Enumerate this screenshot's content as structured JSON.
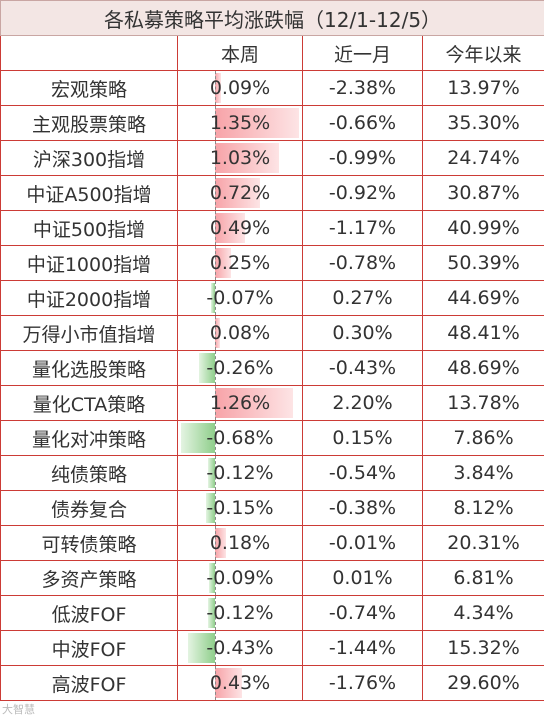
{
  "title": "各私募策略平均涨跌幅（12/1-12/5）",
  "headers": [
    "",
    "本周",
    "近一月",
    "今年以来"
  ],
  "max_abs_week": 1.35,
  "rows": [
    {
      "name": "宏观策略",
      "week": "0.09%",
      "week_num": 0.09,
      "month": "-2.38%",
      "ytd": "13.97%"
    },
    {
      "name": "主观股票策略",
      "week": "1.35%",
      "week_num": 1.35,
      "month": "-0.66%",
      "ytd": "35.30%"
    },
    {
      "name": "沪深300指增",
      "week": "1.03%",
      "week_num": 1.03,
      "month": "-0.99%",
      "ytd": "24.74%"
    },
    {
      "name": "中证A500指增",
      "week": "0.72%",
      "week_num": 0.72,
      "month": "-0.92%",
      "ytd": "30.87%"
    },
    {
      "name": "中证500指增",
      "week": "0.49%",
      "week_num": 0.49,
      "month": "-1.17%",
      "ytd": "40.99%"
    },
    {
      "name": "中证1000指增",
      "week": "0.25%",
      "week_num": 0.25,
      "month": "-0.78%",
      "ytd": "50.39%"
    },
    {
      "name": "中证2000指增",
      "week": "-0.07%",
      "week_num": -0.07,
      "month": "0.27%",
      "ytd": "44.69%"
    },
    {
      "name": "万得小市值指增",
      "week": "0.08%",
      "week_num": 0.08,
      "month": "0.30%",
      "ytd": "48.41%"
    },
    {
      "name": "量化选股策略",
      "week": "-0.26%",
      "week_num": -0.26,
      "month": "-0.43%",
      "ytd": "48.69%"
    },
    {
      "name": "量化CTA策略",
      "week": "1.26%",
      "week_num": 1.26,
      "month": "2.20%",
      "ytd": "13.78%"
    },
    {
      "name": "量化对冲策略",
      "week": "-0.68%",
      "week_num": -0.68,
      "month": "0.15%",
      "ytd": "7.86%"
    },
    {
      "name": "纯债策略",
      "week": "-0.12%",
      "week_num": -0.12,
      "month": "-0.54%",
      "ytd": "3.84%"
    },
    {
      "name": "债券复合",
      "week": "-0.15%",
      "week_num": -0.15,
      "month": "-0.38%",
      "ytd": "8.12%"
    },
    {
      "name": "可转债策略",
      "week": "0.18%",
      "week_num": 0.18,
      "month": "-0.01%",
      "ytd": "20.31%"
    },
    {
      "name": "多资产策略",
      "week": "-0.09%",
      "week_num": -0.09,
      "month": "0.01%",
      "ytd": "6.81%"
    },
    {
      "name": "低波FOF",
      "week": "-0.12%",
      "week_num": -0.12,
      "month": "-0.74%",
      "ytd": "4.34%"
    },
    {
      "name": "中波FOF",
      "week": "-0.43%",
      "week_num": -0.43,
      "month": "-1.44%",
      "ytd": "15.32%"
    },
    {
      "name": "高波FOF",
      "week": "0.43%",
      "week_num": 0.43,
      "month": "-1.76%",
      "ytd": "29.60%"
    }
  ],
  "watermark": "大智慧"
}
